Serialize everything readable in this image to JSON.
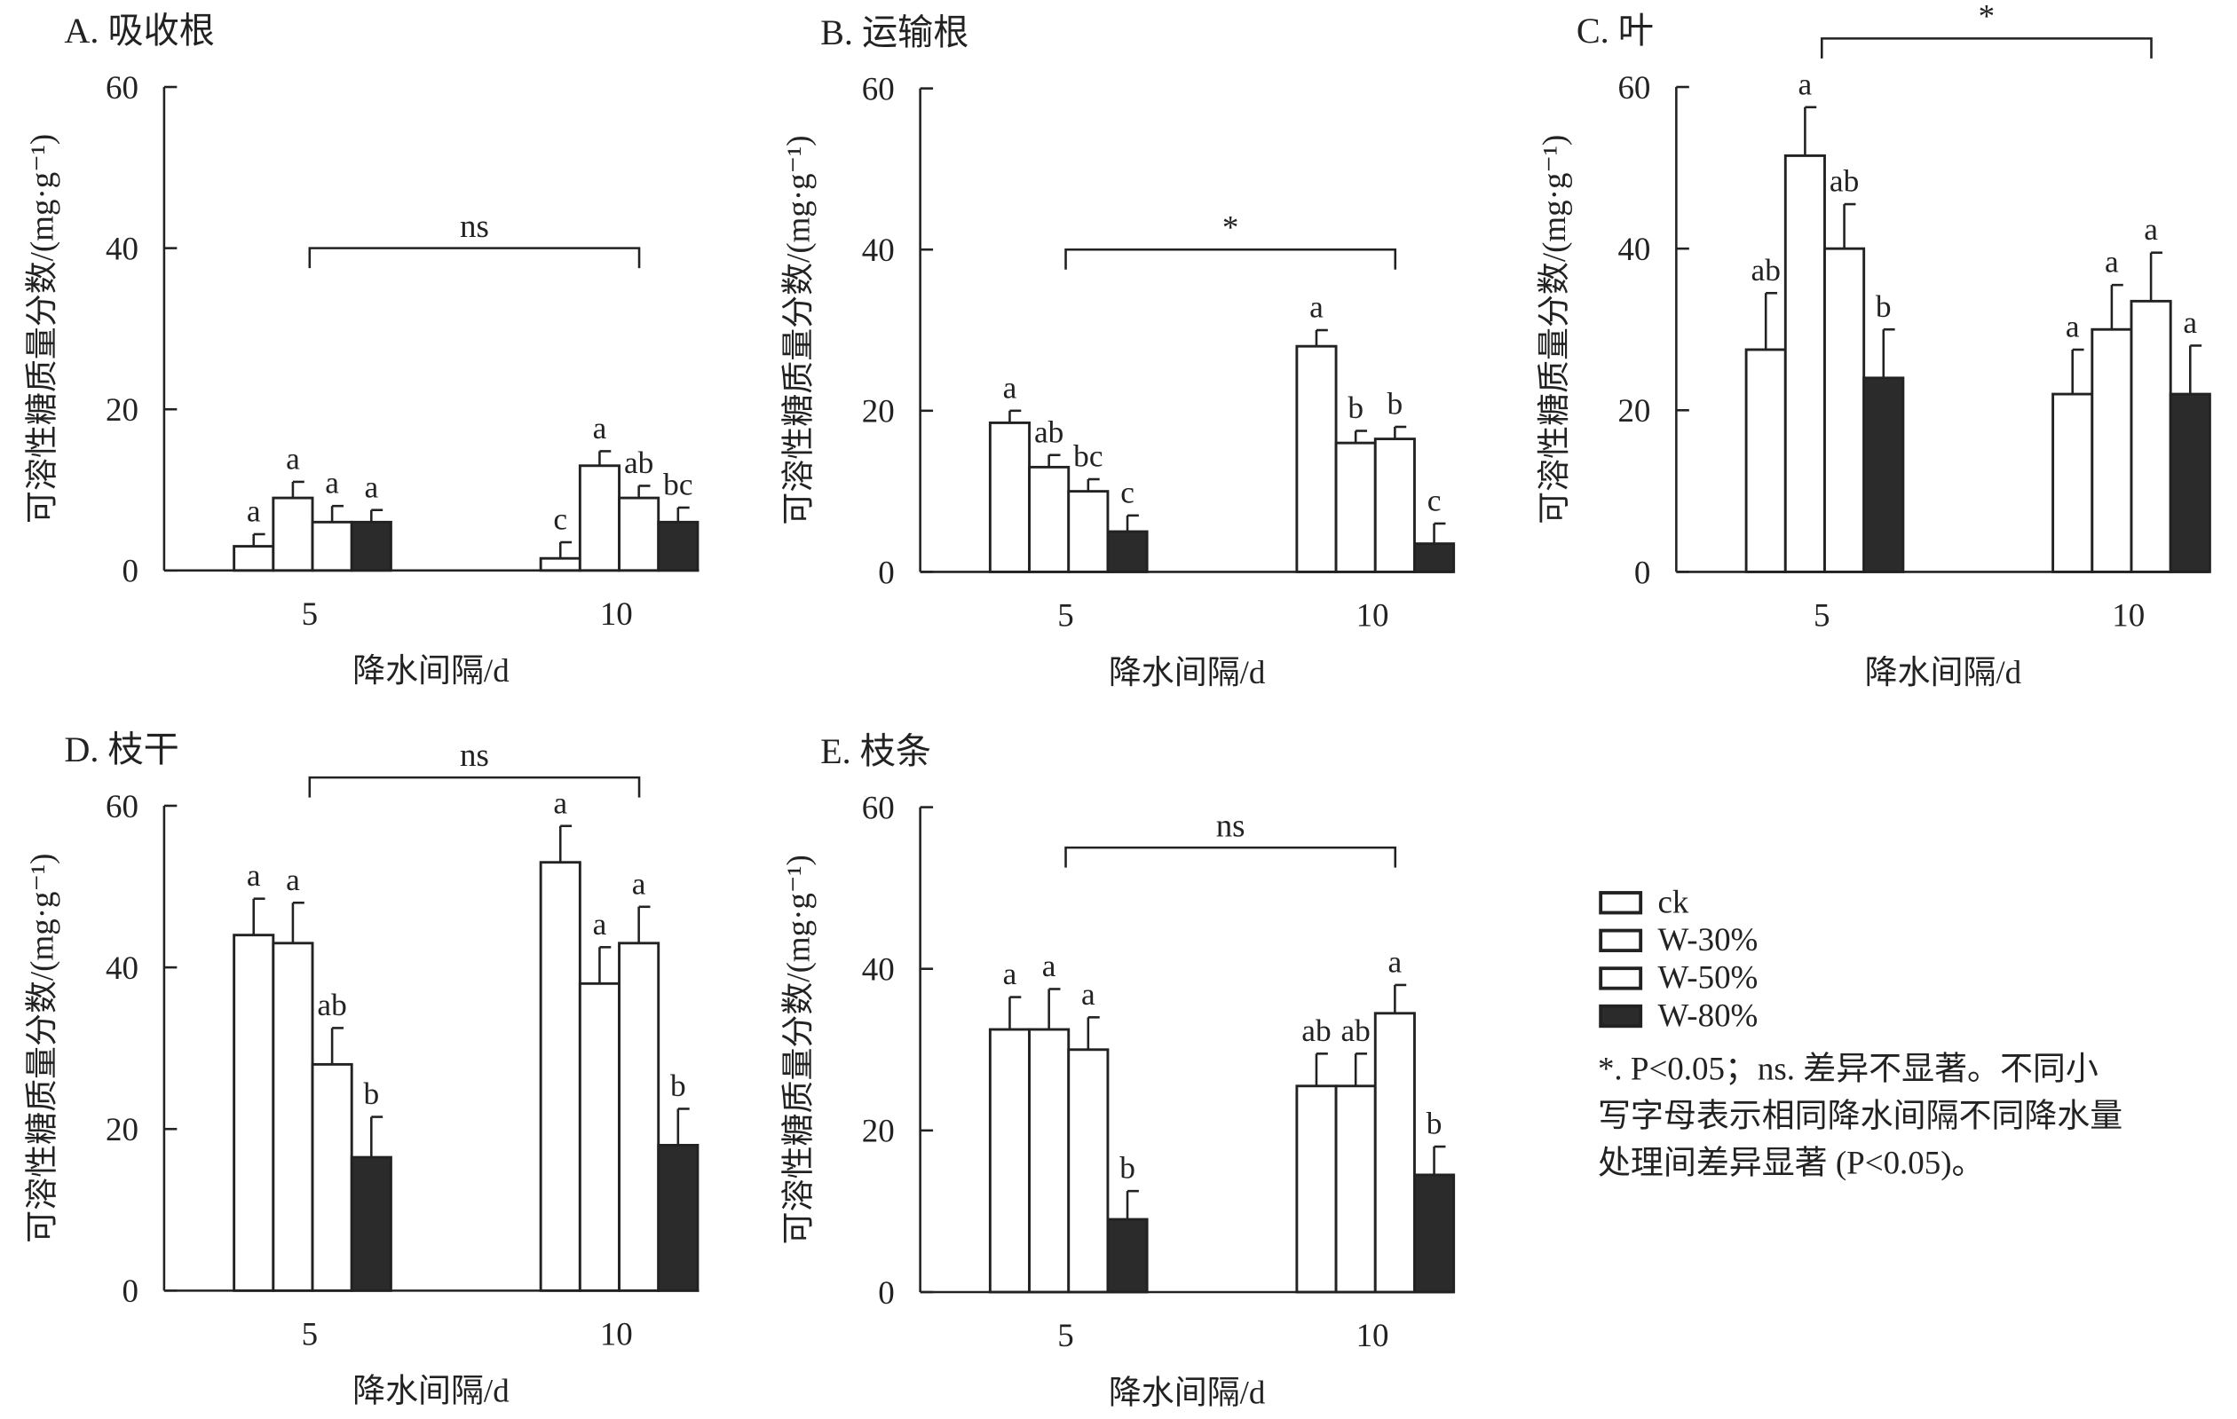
{
  "colors": {
    "open_bar": "#ffffff",
    "filled_bar": "#2b2b2b",
    "stroke": "#222222"
  },
  "legend": {
    "items": [
      {
        "label": "ck",
        "fill": "open"
      },
      {
        "label": "W-30%",
        "fill": "open"
      },
      {
        "label": "W-50%",
        "fill": "open"
      },
      {
        "label": "W-80%",
        "fill": "filled"
      }
    ],
    "note_lines": [
      "*. P<0.05；ns. 差异不显著。不同小",
      "写字母表示相同降水间隔不同降水量",
      "处理间差异显著 (P<0.05)。"
    ]
  },
  "chart_data": [
    {
      "type": "bar",
      "title": "A. 吸收根",
      "xlabel": "降水间隔/d",
      "ylabel": "可溶性糖质量分数/(mg·g⁻¹)",
      "ylim": [
        0,
        60
      ],
      "yticks": [
        "0",
        "20",
        "40",
        "60"
      ],
      "categories": [
        "5",
        "10"
      ],
      "series": [
        {
          "name": "ck",
          "values": [
            3,
            1.5
          ],
          "errors": [
            1.5,
            2
          ],
          "letters": [
            "a",
            "c"
          ]
        },
        {
          "name": "W-30%",
          "values": [
            9,
            13
          ],
          "errors": [
            2,
            1.8
          ],
          "letters": [
            "a",
            "a"
          ]
        },
        {
          "name": "W-50%",
          "values": [
            6,
            9
          ],
          "errors": [
            2,
            1.5
          ],
          "letters": [
            "a",
            "ab"
          ]
        },
        {
          "name": "W-80%",
          "values": [
            6,
            6
          ],
          "errors": [
            1.5,
            1.8
          ],
          "letters": [
            "a",
            "bc"
          ]
        }
      ],
      "bracket": {
        "label": "ns",
        "level": 40
      }
    },
    {
      "type": "bar",
      "title": "B. 运输根",
      "xlabel": "降水间隔/d",
      "ylabel": "可溶性糖质量分数/(mg·g⁻¹)",
      "ylim": [
        0,
        60
      ],
      "yticks": [
        "0",
        "20",
        "40",
        "60"
      ],
      "categories": [
        "5",
        "10"
      ],
      "series": [
        {
          "name": "ck",
          "values": [
            18.5,
            28
          ],
          "errors": [
            1.5,
            2
          ],
          "letters": [
            "a",
            "a"
          ]
        },
        {
          "name": "W-30%",
          "values": [
            13,
            16
          ],
          "errors": [
            1.5,
            1.5
          ],
          "letters": [
            "ab",
            "b"
          ]
        },
        {
          "name": "W-50%",
          "values": [
            10,
            16.5
          ],
          "errors": [
            1.5,
            1.5
          ],
          "letters": [
            "bc",
            "b"
          ]
        },
        {
          "name": "W-80%",
          "values": [
            5,
            3.5
          ],
          "errors": [
            2,
            2.5
          ],
          "letters": [
            "c",
            "c"
          ]
        }
      ],
      "bracket": {
        "label": "*",
        "level": 40
      }
    },
    {
      "type": "bar",
      "title": "C. 叶",
      "xlabel": "降水间隔/d",
      "ylabel": "可溶性糖质量分数/(mg·g⁻¹)",
      "ylim": [
        0,
        60
      ],
      "yticks": [
        "0",
        "20",
        "40",
        "60"
      ],
      "categories": [
        "5",
        "10"
      ],
      "series": [
        {
          "name": "ck",
          "values": [
            27.5,
            22
          ],
          "errors": [
            7,
            5.5
          ],
          "letters": [
            "ab",
            "a"
          ]
        },
        {
          "name": "W-30%",
          "values": [
            51.5,
            30
          ],
          "errors": [
            6,
            5.5
          ],
          "letters": [
            "a",
            "a"
          ]
        },
        {
          "name": "W-50%",
          "values": [
            40,
            33.5
          ],
          "errors": [
            5.5,
            6
          ],
          "letters": [
            "ab",
            "a"
          ]
        },
        {
          "name": "W-80%",
          "values": [
            24,
            22
          ],
          "errors": [
            6,
            6
          ],
          "letters": [
            "b",
            "a"
          ]
        }
      ],
      "bracket": {
        "label": "*",
        "level": 66
      }
    },
    {
      "type": "bar",
      "title": "D. 枝干",
      "xlabel": "降水间隔/d",
      "ylabel": "可溶性糖质量分数/(mg·g⁻¹)",
      "ylim": [
        0,
        60
      ],
      "yticks": [
        "0",
        "20",
        "40",
        "60"
      ],
      "categories": [
        "5",
        "10"
      ],
      "series": [
        {
          "name": "ck",
          "values": [
            44,
            53
          ],
          "errors": [
            4.5,
            4.5
          ],
          "letters": [
            "a",
            "a"
          ]
        },
        {
          "name": "W-30%",
          "values": [
            43,
            38
          ],
          "errors": [
            5,
            4.5
          ],
          "letters": [
            "a",
            "a"
          ]
        },
        {
          "name": "W-50%",
          "values": [
            28,
            43
          ],
          "errors": [
            4.5,
            4.5
          ],
          "letters": [
            "ab",
            "a"
          ]
        },
        {
          "name": "W-80%",
          "values": [
            16.5,
            18
          ],
          "errors": [
            5,
            4.5
          ],
          "letters": [
            "b",
            "b"
          ]
        }
      ],
      "bracket": {
        "label": "ns",
        "level": 63.5
      }
    },
    {
      "type": "bar",
      "title": "E. 枝条",
      "xlabel": "降水间隔/d",
      "ylabel": "可溶性糖质量分数/(mg·g⁻¹)",
      "ylim": [
        0,
        60
      ],
      "yticks": [
        "0",
        "20",
        "40",
        "60"
      ],
      "categories": [
        "5",
        "10"
      ],
      "series": [
        {
          "name": "ck",
          "values": [
            32.5,
            25.5
          ],
          "errors": [
            4,
            4
          ],
          "letters": [
            "a",
            "ab"
          ]
        },
        {
          "name": "W-30%",
          "values": [
            32.5,
            25.5
          ],
          "errors": [
            5,
            4
          ],
          "letters": [
            "a",
            "ab"
          ]
        },
        {
          "name": "W-50%",
          "values": [
            30,
            34.5
          ],
          "errors": [
            4,
            3.5
          ],
          "letters": [
            "a",
            "a"
          ]
        },
        {
          "name": "W-80%",
          "values": [
            9,
            14.5
          ],
          "errors": [
            3.5,
            3.5
          ],
          "letters": [
            "b",
            "b"
          ]
        }
      ],
      "bracket": {
        "label": "ns",
        "level": 55
      }
    }
  ]
}
